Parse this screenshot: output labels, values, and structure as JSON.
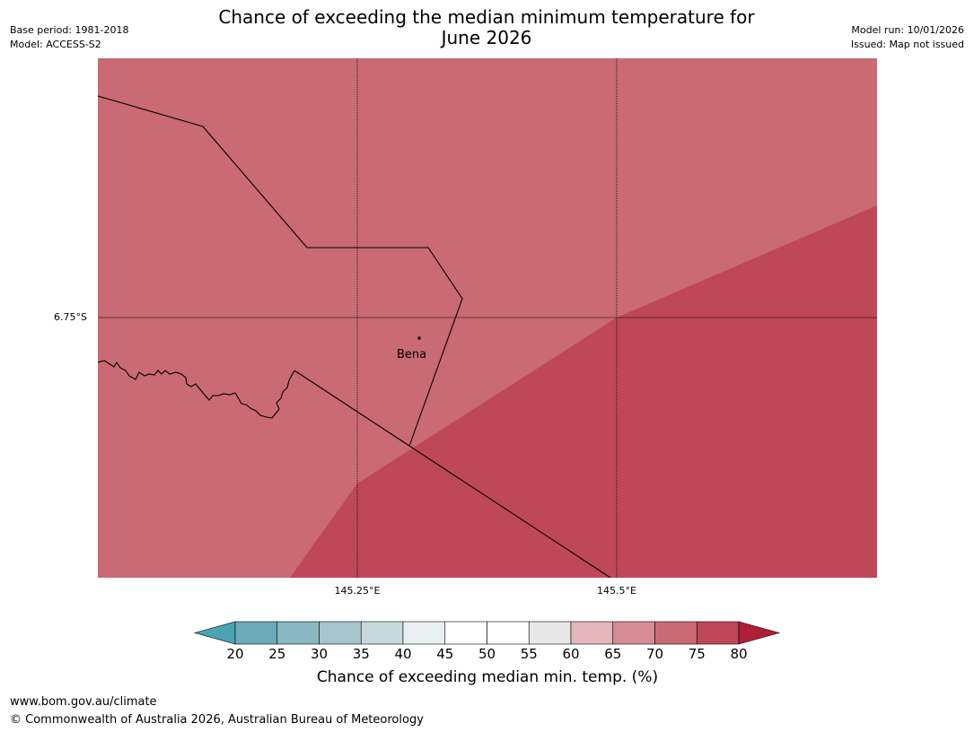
{
  "title": {
    "line1": "Chance of exceeding the median minimum temperature for",
    "line2": "June 2026"
  },
  "meta_left": {
    "base_period": "Base period: 1981-2018",
    "model": "Model: ACCESS-S2"
  },
  "meta_right": {
    "model_run": "Model run: 10/01/2026",
    "issued": "Issued: Map not issued"
  },
  "map": {
    "latitude_labels": [
      "6.75°S"
    ],
    "longitude_labels": [
      "145.25°E",
      "145.5°E"
    ],
    "places": [
      {
        "name": "Bena"
      }
    ],
    "regions": [
      {
        "category": "70-75",
        "color": "#c96a74"
      },
      {
        "category": "75-80",
        "color": "#be4857"
      }
    ]
  },
  "colorbar": {
    "ticks": [
      "20",
      "25",
      "30",
      "35",
      "40",
      "45",
      "50",
      "55",
      "60",
      "65",
      "70",
      "75",
      "80"
    ],
    "colors": [
      "#6aaab9",
      "#8ab7c4",
      "#a6c5cc",
      "#c8d9dd",
      "#e9f0f2",
      "#ffffff",
      "#ffffff",
      "#e8e8e8",
      "#e3b7bb",
      "#d78c95",
      "#c96a74",
      "#be4857"
    ],
    "under_color": "#4aa3b4",
    "over_color": "#b01f38",
    "label": "Chance of exceeding median min. temp. (%)"
  },
  "footer": {
    "url": "www.bom.gov.au/climate",
    "copyright": "© Commonwealth of Australia 2026, Australian Bureau of Meteorology"
  }
}
